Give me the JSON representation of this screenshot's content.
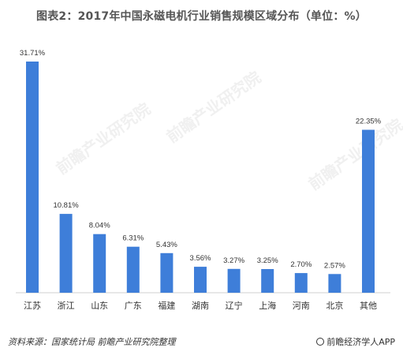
{
  "title": "图表2：2017年中国永磁电机行业销售规模区域分布（单位：%）",
  "footer": {
    "source": "资料来源：国家统计局  前瞻产业研究院整理",
    "brand": "前瞻经济学人APP"
  },
  "watermark": "前瞻产业研究院",
  "colors": {
    "bar": "#3e7ed9"
  },
  "chart_data": {
    "type": "bar",
    "title": "图表2：2017年中国永磁电机行业销售规模区域分布（单位：%）",
    "xlabel": "",
    "ylabel": "",
    "categories": [
      "江苏",
      "浙江",
      "山东",
      "广东",
      "福建",
      "湖南",
      "辽宁",
      "上海",
      "河南",
      "北京",
      "其他"
    ],
    "values": [
      31.71,
      10.81,
      8.04,
      6.31,
      5.43,
      3.56,
      3.27,
      3.25,
      2.7,
      2.57,
      22.35
    ],
    "value_labels": [
      "31.71%",
      "10.81%",
      "8.04%",
      "6.31%",
      "5.43%",
      "3.56%",
      "3.27%",
      "3.25%",
      "2.70%",
      "2.57%",
      "22.35%"
    ],
    "ylim": [
      0,
      31.71
    ],
    "grid": false,
    "legend": "none"
  }
}
